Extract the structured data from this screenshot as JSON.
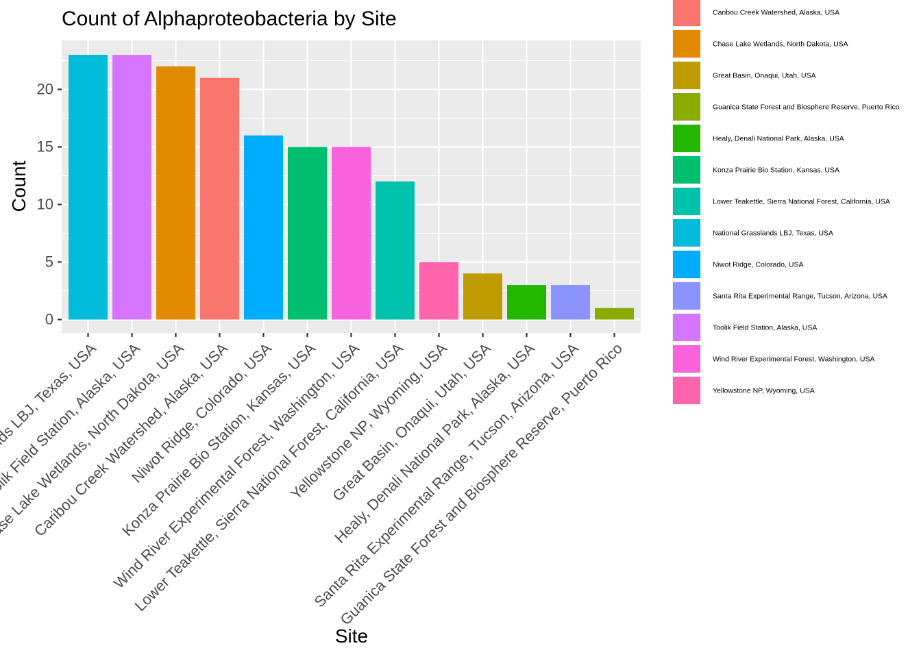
{
  "chart_data": {
    "type": "bar",
    "title": "Count of Alphaproteobacteria by Site",
    "xlabel": "Site",
    "ylabel": "Count",
    "ylim": [
      0,
      24
    ],
    "yticks": [
      0,
      5,
      10,
      15,
      20
    ],
    "grid": true,
    "legend_position": "right",
    "categories": [
      "National Grasslands LBJ, Texas, USA",
      "Toolik Field Station, Alaska, USA",
      "Chase Lake Wetlands, North Dakota, USA",
      "Caribou Creek Watershed, Alaska, USA",
      "Niwot Ridge, Colorado, USA",
      "Konza Prairie Bio Station, Kansas, USA",
      "Wind River Experimental Forest, Washington, USA",
      "Lower Teakettle, Sierra National Forest, California, USA",
      "Yellowstone NP, Wyoming, USA",
      "Great Basin, Onaqui, Utah, USA",
      "Healy, Denali National Park, Alaska, USA",
      "Santa Rita Experimental Range, Tucson, Arizona, USA",
      "Guanica State Forest and Biosphere Reserve, Puerto Rico"
    ],
    "values": [
      23,
      23,
      22,
      21,
      16,
      15,
      15,
      12,
      5,
      4,
      3,
      3,
      1
    ],
    "legend": [
      {
        "label": "Caribou Creek Watershed, Alaska, USA",
        "color": "#F8766D"
      },
      {
        "label": "Chase Lake Wetlands, North Dakota, USA",
        "color": "#E18A00"
      },
      {
        "label": "Great Basin, Onaqui, Utah, USA",
        "color": "#BE9C00"
      },
      {
        "label": "Guanica State Forest and Biosphere Reserve, Puerto Rico",
        "color": "#8CAB00"
      },
      {
        "label": "Healy, Denali National Park, Alaska, USA",
        "color": "#24B700"
      },
      {
        "label": "Konza Prairie Bio Station, Kansas, USA",
        "color": "#00BE70"
      },
      {
        "label": "Lower Teakettle, Sierra National Forest, California, USA",
        "color": "#00C1AB"
      },
      {
        "label": "National Grasslands LBJ, Texas, USA",
        "color": "#00BBDA"
      },
      {
        "label": "Niwot Ridge, Colorado, USA",
        "color": "#00ACFC"
      },
      {
        "label": "Santa Rita Experimental Range, Tucson, Arizona, USA",
        "color": "#8B93FF"
      },
      {
        "label": "Toolik Field Station, Alaska, USA",
        "color": "#D575FE"
      },
      {
        "label": "Wind River Experimental Forest, Washington, USA",
        "color": "#F962DD"
      },
      {
        "label": "Yellowstone NP, Wyoming, USA",
        "color": "#FF65AC"
      }
    ],
    "colors": {
      "panel_background": "#EBEBEB",
      "grid_line": "#FFFFFF",
      "tick_label": "#4D4D4D",
      "tick_mark": "#333333",
      "text": "#000000"
    }
  }
}
